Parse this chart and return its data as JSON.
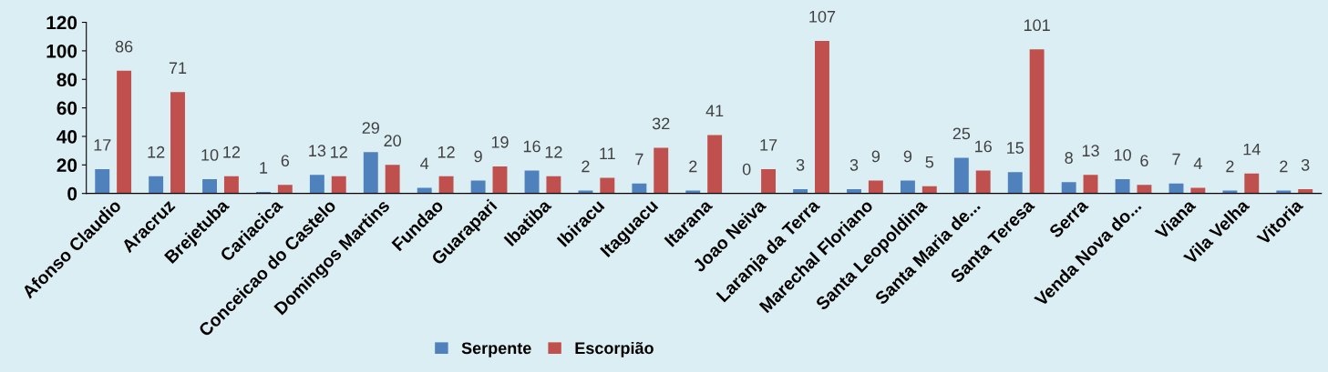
{
  "chart_data": {
    "type": "bar",
    "categories": [
      "Afonso Claudio",
      "Aracruz",
      "Brejetuba",
      "Cariacica",
      "Conceicao do Castelo",
      "Domingos Martins",
      "Fundao",
      "Guarapari",
      "Ibatiba",
      "Ibiracu",
      "Itaguacu",
      "Itarana",
      "Joao Neiva",
      "Laranja da Terra",
      "Marechal Floriano",
      "Santa Leopoldina",
      "Santa Maria de...",
      "Santa Teresa",
      "Serra",
      "Venda Nova do...",
      "Viana",
      "Vila Velha",
      "Vitoria"
    ],
    "series": [
      {
        "name": "Serpente",
        "color": "#4f81bd",
        "values": [
          17,
          12,
          10,
          1,
          13,
          29,
          4,
          9,
          16,
          2,
          7,
          2,
          0,
          3,
          3,
          9,
          25,
          15,
          8,
          10,
          7,
          2,
          2
        ]
      },
      {
        "name": "Escorpião",
        "color": "#c0504d",
        "values": [
          86,
          71,
          12,
          6,
          12,
          20,
          12,
          19,
          12,
          11,
          32,
          41,
          17,
          107,
          9,
          5,
          16,
          101,
          13,
          6,
          4,
          14,
          3
        ]
      }
    ],
    "ylim": [
      0,
      120
    ],
    "yticks": [
      0,
      20,
      40,
      60,
      80,
      100,
      120
    ],
    "grid": false,
    "legend": "bottom",
    "data_labels": true
  }
}
